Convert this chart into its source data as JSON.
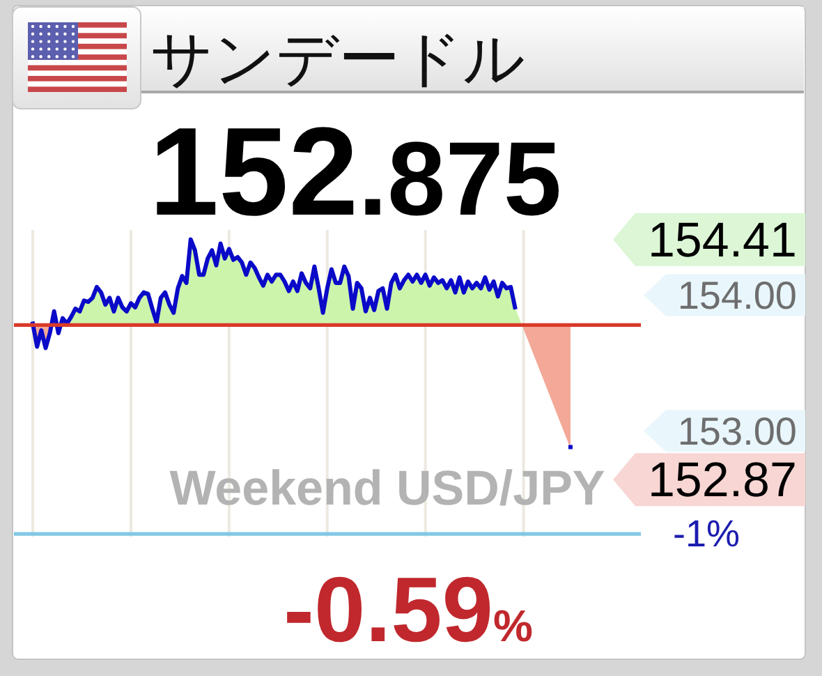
{
  "chart_data": {
    "type": "area",
    "title": "サンデードル",
    "subtitle": "152.875",
    "categories": [
      null,
      null,
      null,
      null,
      null,
      null,
      null,
      null,
      null,
      null,
      null,
      null,
      null,
      null,
      null,
      null,
      null,
      null,
      null,
      null,
      null,
      null,
      null,
      null,
      null,
      null,
      null,
      null,
      null,
      null,
      null,
      null,
      null,
      null,
      null,
      null,
      null,
      null,
      null,
      null,
      null,
      null,
      null,
      null,
      null,
      null,
      null,
      null,
      null,
      null,
      null,
      null,
      null,
      null,
      null,
      null,
      null,
      null,
      null,
      null,
      null,
      null,
      null,
      null,
      null,
      null,
      null,
      null,
      null,
      null,
      null,
      null,
      null,
      null,
      null,
      null,
      null,
      null,
      null,
      null,
      null,
      null,
      null,
      null,
      null,
      null,
      null,
      null,
      null,
      null,
      null,
      null,
      null,
      null,
      null,
      null,
      null,
      null,
      null,
      null,
      null,
      null,
      null,
      null,
      null,
      null,
      null,
      null,
      null,
      null,
      null,
      null,
      null,
      null,
      null,
      null,
      null,
      null,
      null,
      null,
      null,
      null,
      null,
      null,
      null,
      null,
      null
    ],
    "series": [
      {
        "color": "#0a0ac8",
        "values": [
          153.79,
          153.62,
          153.74,
          153.61,
          153.72,
          153.88,
          153.72,
          153.83,
          153.79,
          153.84,
          153.9,
          153.88,
          153.96,
          153.95,
          153.98,
          154.06,
          154.02,
          153.93,
          153.98,
          153.88,
          153.98,
          153.91,
          153.88,
          153.94,
          153.91,
          153.98,
          154.02,
          154.01,
          153.9,
          153.8,
          153.98,
          154.02,
          153.93,
          153.87,
          154.05,
          154.14,
          154.09,
          154.41,
          154.33,
          154.15,
          154.15,
          154.27,
          154.33,
          154.22,
          154.38,
          154.27,
          154.34,
          154.26,
          154.28,
          154.24,
          154.15,
          154.24,
          154.2,
          154.13,
          154.07,
          154.15,
          154.1,
          154.15,
          154.15,
          154.1,
          154.03,
          154.1,
          154.03,
          154.16,
          154.09,
          154.05,
          154.21,
          154.05,
          153.87,
          154.05,
          154.19,
          154.09,
          154.09,
          154.21,
          154.14,
          153.9,
          154.09,
          154.05,
          153.88,
          153.98,
          153.89,
          154.03,
          154.05,
          153.9,
          154.09,
          154.15,
          154.05,
          154.11,
          154.15,
          154.1,
          154.15,
          154.09,
          154.15,
          154.07,
          154.13,
          154.09,
          154.11,
          154.05,
          154.11,
          154.02,
          154.13,
          154.02,
          154.1,
          154.05,
          154.09,
          154.05,
          154.13,
          154.04,
          154.1,
          153.99,
          154.09,
          154.05,
          154.06,
          153.91,
          null,
          null,
          null,
          null,
          null,
          null,
          null,
          null,
          null,
          null,
          null,
          null,
          152.87
        ]
      }
    ],
    "ylim": [
      152.22,
      154.48
    ],
    "yticks": [
      {
        "value": 154,
        "label": "154.00"
      },
      {
        "value": 153,
        "label": "153.00"
      }
    ],
    "tick_labels": "y",
    "grid": "x",
    "ref_lines": [
      {
        "axis": "y",
        "value": 153.78,
        "color": "#d93a2a"
      },
      {
        "axis": "y",
        "value": 152.24,
        "color": "#82c8e6"
      }
    ],
    "annotations": [
      "154.41",
      "152.87",
      "Weekend USD/JPY",
      "-1%",
      "-0.59%"
    ]
  }
}
